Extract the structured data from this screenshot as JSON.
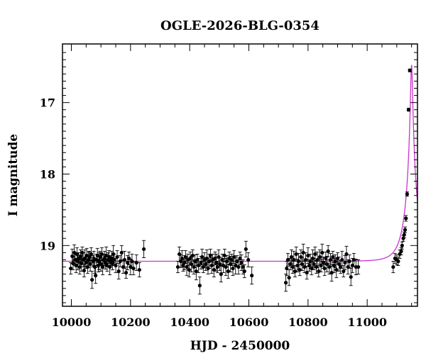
{
  "chart_data": {
    "type": "scatter",
    "title": "OGLE-2026-BLG-0354",
    "xlabel": "HJD - 2450000",
    "ylabel": "I magnitude",
    "xlim": [
      9970,
      11170
    ],
    "ylim": [
      19.85,
      16.18
    ],
    "y_inverted": true,
    "x_ticks": [
      10000,
      10200,
      10400,
      10600,
      10800,
      11000
    ],
    "x_tick_labels": [
      "10000",
      "10200",
      "10400",
      "10600",
      "10800",
      "11000"
    ],
    "y_ticks": [
      17,
      18,
      19
    ],
    "y_tick_labels": [
      "17",
      "18",
      "19"
    ],
    "colors": {
      "model": "#cc33cc",
      "points": "#000000",
      "frame": "#000000"
    },
    "model": {
      "baseline_mag": 19.22,
      "t0": 11150,
      "peak_mag": 16.2,
      "u0": 0.08,
      "tE": 40,
      "blend_fraction": 1.0
    },
    "series": [
      {
        "points": [
          [
            9998,
            19.32,
            0.08
          ],
          [
            10003,
            19.15,
            0.1
          ],
          [
            10006,
            19.25,
            0.09
          ],
          [
            10010,
            19.1,
            0.11
          ],
          [
            10013,
            19.2,
            0.08
          ],
          [
            10016,
            19.28,
            0.1
          ],
          [
            10019,
            19.12,
            0.09
          ],
          [
            10022,
            19.22,
            0.12
          ],
          [
            10025,
            19.18,
            0.08
          ],
          [
            10028,
            19.3,
            0.1
          ],
          [
            10031,
            19.15,
            0.09
          ],
          [
            10034,
            19.25,
            0.11
          ],
          [
            10037,
            19.1,
            0.08
          ],
          [
            10040,
            19.2,
            0.1
          ],
          [
            10043,
            19.35,
            0.09
          ],
          [
            10046,
            19.18,
            0.12
          ],
          [
            10049,
            19.24,
            0.08
          ],
          [
            10052,
            19.14,
            0.1
          ],
          [
            10055,
            19.3,
            0.09
          ],
          [
            10058,
            19.2,
            0.11
          ],
          [
            10061,
            19.16,
            0.08
          ],
          [
            10064,
            19.26,
            0.1
          ],
          [
            10067,
            19.12,
            0.09
          ],
          [
            10070,
            19.48,
            0.12
          ],
          [
            10073,
            19.22,
            0.08
          ],
          [
            10076,
            19.18,
            0.1
          ],
          [
            10079,
            19.3,
            0.09
          ],
          [
            10082,
            19.42,
            0.11
          ],
          [
            10085,
            19.2,
            0.08
          ],
          [
            10088,
            19.14,
            0.1
          ],
          [
            10091,
            19.28,
            0.09
          ],
          [
            10094,
            19.22,
            0.12
          ],
          [
            10097,
            19.16,
            0.08
          ],
          [
            10100,
            19.26,
            0.1
          ],
          [
            10103,
            19.12,
            0.09
          ],
          [
            10106,
            19.3,
            0.11
          ],
          [
            10109,
            19.2,
            0.08
          ],
          [
            10112,
            19.18,
            0.1
          ],
          [
            10115,
            19.24,
            0.09
          ],
          [
            10118,
            19.14,
            0.12
          ],
          [
            10121,
            19.28,
            0.08
          ],
          [
            10124,
            19.2,
            0.1
          ],
          [
            10127,
            19.16,
            0.09
          ],
          [
            10130,
            19.3,
            0.11
          ],
          [
            10133,
            19.22,
            0.08
          ],
          [
            10136,
            19.18,
            0.1
          ],
          [
            10139,
            19.25,
            0.09
          ],
          [
            10142,
            19.12,
            0.12
          ],
          [
            10145,
            19.2,
            0.08
          ],
          [
            10150,
            19.28,
            0.1
          ],
          [
            10155,
            19.16,
            0.09
          ],
          [
            10160,
            19.36,
            0.11
          ],
          [
            10165,
            19.22,
            0.08
          ],
          [
            10170,
            19.1,
            0.1
          ],
          [
            10175,
            19.3,
            0.09
          ],
          [
            10180,
            19.2,
            0.12
          ],
          [
            10185,
            19.38,
            0.08
          ],
          [
            10190,
            19.24,
            0.1
          ],
          [
            10195,
            19.18,
            0.09
          ],
          [
            10200,
            19.3,
            0.11
          ],
          [
            10205,
            19.22,
            0.1
          ],
          [
            10210,
            19.32,
            0.09
          ],
          [
            10220,
            19.24,
            0.11
          ],
          [
            10230,
            19.34,
            0.1
          ],
          [
            10245,
            19.05,
            0.12
          ],
          [
            10360,
            19.3,
            0.08
          ],
          [
            10365,
            19.12,
            0.1
          ],
          [
            10370,
            19.22,
            0.09
          ],
          [
            10374,
            19.18,
            0.11
          ],
          [
            10378,
            19.28,
            0.08
          ],
          [
            10382,
            19.24,
            0.1
          ],
          [
            10386,
            19.16,
            0.09
          ],
          [
            10390,
            19.3,
            0.12
          ],
          [
            10394,
            19.2,
            0.08
          ],
          [
            10398,
            19.34,
            0.1
          ],
          [
            10402,
            19.18,
            0.09
          ],
          [
            10406,
            19.26,
            0.11
          ],
          [
            10410,
            19.14,
            0.08
          ],
          [
            10414,
            19.3,
            0.1
          ],
          [
            10418,
            19.22,
            0.09
          ],
          [
            10422,
            19.36,
            0.12
          ],
          [
            10426,
            19.2,
            0.08
          ],
          [
            10430,
            19.28,
            0.1
          ],
          [
            10434,
            19.56,
            0.12
          ],
          [
            10438,
            19.24,
            0.09
          ],
          [
            10442,
            19.16,
            0.11
          ],
          [
            10446,
            19.3,
            0.08
          ],
          [
            10450,
            19.2,
            0.1
          ],
          [
            10454,
            19.26,
            0.09
          ],
          [
            10458,
            19.18,
            0.12
          ],
          [
            10462,
            19.32,
            0.08
          ],
          [
            10466,
            19.22,
            0.1
          ],
          [
            10470,
            19.14,
            0.09
          ],
          [
            10474,
            19.28,
            0.11
          ],
          [
            10478,
            19.2,
            0.08
          ],
          [
            10482,
            19.34,
            0.1
          ],
          [
            10486,
            19.18,
            0.09
          ],
          [
            10490,
            19.24,
            0.12
          ],
          [
            10494,
            19.3,
            0.08
          ],
          [
            10498,
            19.16,
            0.1
          ],
          [
            10502,
            19.26,
            0.09
          ],
          [
            10506,
            19.4,
            0.11
          ],
          [
            10510,
            19.2,
            0.08
          ],
          [
            10514,
            19.28,
            0.1
          ],
          [
            10518,
            19.14,
            0.09
          ],
          [
            10522,
            19.3,
            0.12
          ],
          [
            10526,
            19.22,
            0.08
          ],
          [
            10530,
            19.36,
            0.1
          ],
          [
            10534,
            19.18,
            0.09
          ],
          [
            10538,
            19.26,
            0.11
          ],
          [
            10542,
            19.2,
            0.08
          ],
          [
            10546,
            19.32,
            0.1
          ],
          [
            10550,
            19.16,
            0.09
          ],
          [
            10555,
            19.28,
            0.12
          ],
          [
            10560,
            19.22,
            0.08
          ],
          [
            10565,
            19.3,
            0.1
          ],
          [
            10570,
            19.18,
            0.09
          ],
          [
            10575,
            19.24,
            0.11
          ],
          [
            10580,
            19.3,
            0.1
          ],
          [
            10585,
            19.36,
            0.09
          ],
          [
            10590,
            19.05,
            0.11
          ],
          [
            10598,
            19.2,
            0.1
          ],
          [
            10610,
            19.42,
            0.12
          ],
          [
            10725,
            19.52,
            0.12
          ],
          [
            10728,
            19.32,
            0.1
          ],
          [
            10732,
            19.2,
            0.09
          ],
          [
            10736,
            19.45,
            0.11
          ],
          [
            10740,
            19.26,
            0.08
          ],
          [
            10744,
            19.16,
            0.1
          ],
          [
            10748,
            19.3,
            0.09
          ],
          [
            10752,
            19.2,
            0.12
          ],
          [
            10756,
            19.36,
            0.08
          ],
          [
            10760,
            19.12,
            0.1
          ],
          [
            10764,
            19.28,
            0.09
          ],
          [
            10768,
            19.22,
            0.11
          ],
          [
            10772,
            19.34,
            0.08
          ],
          [
            10776,
            19.16,
            0.1
          ],
          [
            10780,
            19.26,
            0.09
          ],
          [
            10784,
            19.1,
            0.12
          ],
          [
            10788,
            19.3,
            0.08
          ],
          [
            10792,
            19.2,
            0.1
          ],
          [
            10796,
            19.38,
            0.09
          ],
          [
            10800,
            19.14,
            0.11
          ],
          [
            10804,
            19.28,
            0.08
          ],
          [
            10808,
            19.22,
            0.1
          ],
          [
            10812,
            19.32,
            0.09
          ],
          [
            10816,
            19.18,
            0.12
          ],
          [
            10820,
            19.26,
            0.08
          ],
          [
            10824,
            19.12,
            0.1
          ],
          [
            10828,
            19.3,
            0.09
          ],
          [
            10832,
            19.2,
            0.11
          ],
          [
            10836,
            19.36,
            0.08
          ],
          [
            10840,
            19.16,
            0.1
          ],
          [
            10844,
            19.28,
            0.09
          ],
          [
            10848,
            19.1,
            0.12
          ],
          [
            10852,
            19.24,
            0.08
          ],
          [
            10856,
            19.32,
            0.1
          ],
          [
            10860,
            19.18,
            0.09
          ],
          [
            10864,
            19.26,
            0.11
          ],
          [
            10868,
            19.08,
            0.08
          ],
          [
            10872,
            19.3,
            0.1
          ],
          [
            10876,
            19.2,
            0.09
          ],
          [
            10880,
            19.38,
            0.12
          ],
          [
            10884,
            19.16,
            0.08
          ],
          [
            10888,
            19.28,
            0.1
          ],
          [
            10892,
            19.22,
            0.09
          ],
          [
            10896,
            19.34,
            0.11
          ],
          [
            10900,
            19.18,
            0.08
          ],
          [
            10905,
            19.26,
            0.1
          ],
          [
            10910,
            19.3,
            0.09
          ],
          [
            10915,
            19.2,
            0.12
          ],
          [
            10920,
            19.36,
            0.08
          ],
          [
            10925,
            19.24,
            0.1
          ],
          [
            10930,
            19.12,
            0.11
          ],
          [
            10935,
            19.3,
            0.1
          ],
          [
            10940,
            19.22,
            0.09
          ],
          [
            10945,
            19.44,
            0.12
          ],
          [
            10950,
            19.28,
            0.1
          ],
          [
            10955,
            19.2,
            0.09
          ],
          [
            10962,
            19.3,
            0.11
          ],
          [
            10970,
            19.3,
            0.1
          ],
          [
            11088,
            19.3,
            0.08
          ],
          [
            11094,
            19.18,
            0.07
          ],
          [
            11100,
            19.2,
            0.07
          ],
          [
            11105,
            19.22,
            0.06
          ],
          [
            11110,
            19.12,
            0.06
          ],
          [
            11115,
            19.08,
            0.05
          ],
          [
            11118,
            19.0,
            0.05
          ],
          [
            11122,
            18.9,
            0.04
          ],
          [
            11125,
            18.85,
            0.04
          ],
          [
            11128,
            18.78,
            0.04
          ],
          [
            11131,
            18.62,
            0.04
          ],
          [
            11135,
            18.28,
            0.03
          ],
          [
            11140,
            17.1,
            0.02
          ],
          [
            11144,
            16.55,
            0.02
          ]
        ]
      }
    ]
  }
}
